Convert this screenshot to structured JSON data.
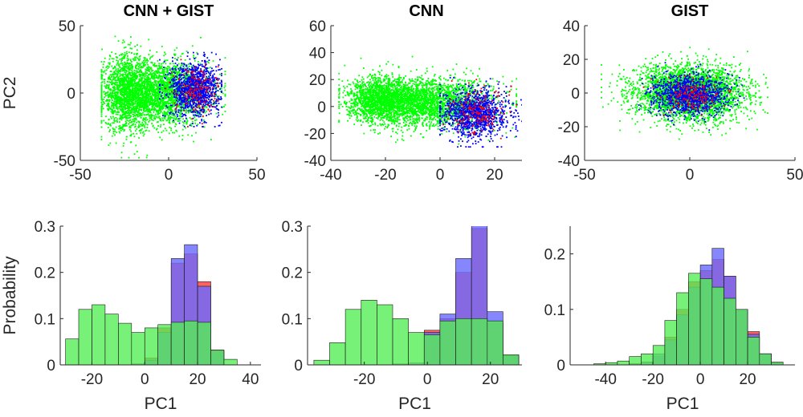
{
  "colors": {
    "green": "#00ff00",
    "blue": "#0000ff",
    "red": "#ff0000",
    "axis": "#262626"
  },
  "chart_data": [
    {
      "type": "scatter",
      "title": "CNN + GIST",
      "xlabel": "",
      "ylabel": "PC2",
      "xlim": [
        -50,
        50
      ],
      "ylim": [
        -50,
        50
      ],
      "xticks": [
        -50,
        0,
        50
      ],
      "yticks": [
        -50,
        0,
        50
      ],
      "clusters": [
        {
          "color": "green",
          "n": 2600,
          "cx": -5,
          "cy": 0,
          "sx": 14,
          "sy": 12,
          "xr": [
            -38,
            32
          ],
          "yr": [
            -48,
            48
          ]
        },
        {
          "color": "green",
          "n": 1300,
          "cx": -24,
          "cy": 0,
          "sx": 7,
          "sy": 14,
          "xr": [
            -38,
            32
          ],
          "yr": [
            -48,
            48
          ]
        },
        {
          "color": "blue",
          "n": 1200,
          "cx": 15,
          "cy": 3,
          "sx": 7,
          "sy": 10,
          "xr": [
            -5,
            30
          ],
          "yr": [
            -25,
            30
          ]
        },
        {
          "color": "red",
          "n": 160,
          "cx": 15,
          "cy": 3,
          "sx": 6,
          "sy": 9,
          "xr": [
            -5,
            28
          ],
          "yr": [
            -25,
            30
          ]
        }
      ]
    },
    {
      "type": "scatter",
      "title": "CNN",
      "xlabel": "",
      "ylabel": "",
      "xlim": [
        -40,
        30
      ],
      "ylim": [
        -40,
        60
      ],
      "xticks": [
        -40,
        -20,
        0,
        20
      ],
      "yticks": [
        -40,
        -20,
        0,
        20,
        40,
        60
      ],
      "clusters": [
        {
          "color": "green",
          "n": 2600,
          "cx": -5,
          "cy": 3,
          "sx": 12,
          "sy": 9,
          "xr": [
            -37,
            28
          ],
          "yr": [
            -30,
            45
          ]
        },
        {
          "color": "green",
          "n": 1300,
          "cx": -22,
          "cy": 5,
          "sx": 6,
          "sy": 8,
          "xr": [
            -37,
            28
          ],
          "yr": [
            -30,
            45
          ]
        },
        {
          "color": "blue",
          "n": 1200,
          "cx": 13,
          "cy": -5,
          "sx": 6,
          "sy": 9,
          "xr": [
            0,
            30
          ],
          "yr": [
            -30,
            25
          ]
        },
        {
          "color": "red",
          "n": 160,
          "cx": 14,
          "cy": -4,
          "sx": 5,
          "sy": 8,
          "xr": [
            0,
            28
          ],
          "yr": [
            -28,
            20
          ]
        }
      ]
    },
    {
      "type": "scatter",
      "title": "GIST",
      "xlabel": "",
      "ylabel": "",
      "xlim": [
        -50,
        50
      ],
      "ylim": [
        -40,
        40
      ],
      "xticks": [
        -50,
        0,
        50
      ],
      "yticks": [
        -40,
        -20,
        0,
        20,
        40
      ],
      "clusters": [
        {
          "color": "green",
          "n": 3600,
          "cx": 0,
          "cy": 0,
          "sx": 13,
          "sy": 8,
          "xr": [
            -42,
            37
          ],
          "yr": [
            -28,
            28
          ]
        },
        {
          "color": "blue",
          "n": 1200,
          "cx": 0,
          "cy": -1,
          "sx": 9,
          "sy": 6,
          "xr": [
            -25,
            28
          ],
          "yr": [
            -22,
            18
          ]
        },
        {
          "color": "red",
          "n": 160,
          "cx": 2,
          "cy": -1,
          "sx": 8,
          "sy": 5,
          "xr": [
            -22,
            25
          ],
          "yr": [
            -18,
            15
          ]
        }
      ]
    },
    {
      "type": "bar",
      "title": "",
      "xlabel": "PC1",
      "ylabel": "Probability",
      "xlim": [
        -32,
        44
      ],
      "ylim": [
        0,
        0.3
      ],
      "xticks": [
        -20,
        0,
        20,
        40
      ],
      "yticks": [
        0,
        0.1,
        0.2,
        0.3
      ],
      "bin_edges": [
        -30,
        -25,
        -20,
        -15,
        -10,
        -5,
        0,
        5,
        10,
        15,
        20,
        25,
        30,
        35
      ],
      "series": [
        {
          "color": "red",
          "values": [
            0,
            0,
            0,
            0,
            0,
            0.002,
            0.015,
            0.08,
            0.22,
            0.24,
            0.18,
            0.032,
            0,
            0
          ]
        },
        {
          "color": "blue",
          "values": [
            0,
            0,
            0,
            0,
            0,
            0.002,
            0.01,
            0.07,
            0.23,
            0.26,
            0.17,
            0.03,
            0,
            0
          ]
        },
        {
          "color": "green",
          "values": [
            0.056,
            0.12,
            0.13,
            0.11,
            0.09,
            0.07,
            0.08,
            0.087,
            0.092,
            0.095,
            0.092,
            0.032,
            0.012,
            0.005
          ]
        }
      ]
    },
    {
      "type": "bar",
      "title": "",
      "xlabel": "PC1",
      "ylabel": "",
      "xlim": [
        -38,
        30
      ],
      "ylim": [
        0,
        0.3
      ],
      "xticks": [
        -20,
        0,
        20
      ],
      "yticks": [
        0,
        0.1,
        0.2,
        0.3
      ],
      "bin_edges": [
        -36,
        -31,
        -26,
        -21,
        -16,
        -11,
        -6,
        -1,
        4,
        9,
        14,
        19,
        24,
        29
      ],
      "series": [
        {
          "color": "red",
          "values": [
            0,
            0,
            0,
            0,
            0,
            0.002,
            0.004,
            0.075,
            0.1,
            0.2,
            0.295,
            0.09,
            0.02,
            0
          ]
        },
        {
          "color": "blue",
          "values": [
            0,
            0,
            0,
            0,
            0,
            0.002,
            0.004,
            0.07,
            0.11,
            0.23,
            0.31,
            0.115,
            0.02,
            0
          ]
        },
        {
          "color": "green",
          "values": [
            0.01,
            0.048,
            0.12,
            0.14,
            0.13,
            0.1,
            0.07,
            0.065,
            0.095,
            0.1,
            0.1,
            0.095,
            0.022,
            0.005
          ]
        }
      ]
    },
    {
      "type": "bar",
      "title": "",
      "xlabel": "PC1",
      "ylabel": "",
      "xlim": [
        -55,
        40
      ],
      "ylim": [
        0,
        0.25
      ],
      "xticks": [
        -40,
        -20,
        0,
        20
      ],
      "yticks": [
        0,
        0.1,
        0.2
      ],
      "bin_edges": [
        -45,
        -40,
        -35,
        -30,
        -25,
        -20,
        -15,
        -10,
        -5,
        0,
        5,
        10,
        15,
        20,
        25,
        30,
        35
      ],
      "series": [
        {
          "color": "red",
          "values": [
            0,
            0,
            0,
            0.002,
            0.005,
            0.015,
            0.05,
            0.1,
            0.15,
            0.17,
            0.19,
            0.16,
            0.1,
            0.06,
            0.02,
            0.003
          ]
        },
        {
          "color": "blue",
          "values": [
            0,
            0,
            0,
            0.002,
            0.005,
            0.02,
            0.045,
            0.09,
            0.14,
            0.18,
            0.21,
            0.16,
            0.1,
            0.055,
            0.02,
            0.004
          ]
        },
        {
          "color": "green",
          "values": [
            0.002,
            0.004,
            0.007,
            0.015,
            0.02,
            0.035,
            0.08,
            0.13,
            0.165,
            0.155,
            0.14,
            0.12,
            0.1,
            0.05,
            0.02,
            0.005
          ]
        }
      ]
    }
  ]
}
